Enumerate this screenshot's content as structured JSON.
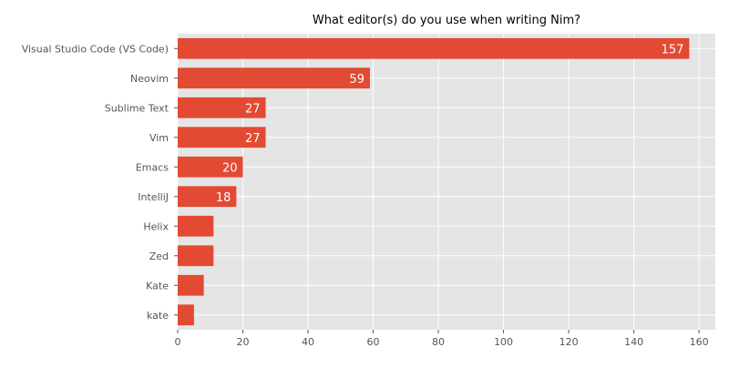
{
  "chart_data": {
    "type": "bar",
    "orientation": "horizontal",
    "title": "What editor(s) do you use when writing Nim?",
    "xlabel": "",
    "ylabel": "",
    "categories": [
      "Visual Studio Code (VS Code)",
      "Neovim",
      "Sublime Text",
      "Vim",
      "Emacs",
      "IntelliJ",
      "Helix",
      "Zed",
      "Kate",
      "kate"
    ],
    "values": [
      157,
      59,
      27,
      27,
      20,
      18,
      11,
      11,
      8,
      5
    ],
    "data_labels": [
      "157",
      "59",
      "27",
      "27",
      "20",
      "18",
      "",
      "",
      "",
      ""
    ],
    "xlim": [
      0,
      165
    ],
    "xticks": [
      0,
      20,
      40,
      60,
      80,
      100,
      120,
      140,
      160
    ],
    "xtick_labels": [
      "0",
      "20",
      "40",
      "60",
      "80",
      "100",
      "120",
      "140",
      "160"
    ],
    "grid": true,
    "colors": {
      "bar": "#E24A33",
      "plot_background": "#E5E5E5",
      "grid": "#FFFFFF",
      "label_text": "#555555",
      "title_text": "#000000",
      "data_label_text": "#FFFFFF"
    }
  }
}
